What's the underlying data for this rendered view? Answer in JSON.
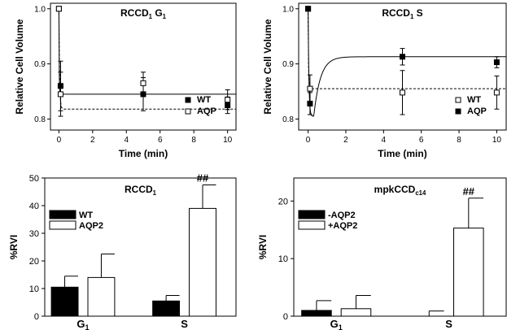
{
  "chart_data": [
    {
      "type": "scatter",
      "title": "RCCD",
      "title_sub": "1",
      "title_suffix": " G",
      "title_suffix_sub": "1",
      "xlabel": "Time (min)",
      "ylabel": "Relative Cell Volume",
      "xlim": [
        -0.5,
        10.5
      ],
      "ylim": [
        0.78,
        1.01
      ],
      "xticks": [
        "0",
        "2",
        "4",
        "6",
        "8",
        "10"
      ],
      "yticks": [
        "0.8",
        "0.9",
        "1.0"
      ],
      "legend_position": "bottom-right",
      "series": [
        {
          "name": "WT",
          "marker": "filled-square",
          "x": [
            0,
            0.1,
            5,
            10
          ],
          "y": [
            1.0,
            0.86,
            0.845,
            0.825
          ],
          "err": [
            0,
            0.045,
            0.03,
            0.015
          ],
          "fit": {
            "style": "solid",
            "plateau": 0.845,
            "tau": 0.015
          }
        },
        {
          "name": "AQP",
          "marker": "open-square",
          "x": [
            0,
            0.1,
            5,
            10
          ],
          "y": [
            1.0,
            0.845,
            0.865,
            0.835
          ],
          "err": [
            0,
            0.04,
            0.02,
            0.018
          ],
          "fit": {
            "style": "dashed",
            "plateau": 0.818,
            "tau": 0.04
          }
        }
      ]
    },
    {
      "type": "scatter",
      "title": "RCCD",
      "title_sub": "1",
      "title_suffix": " S",
      "title_suffix_sub": "",
      "xlabel": "Time (min)",
      "ylabel": "Relative Cell Volume",
      "xlim": [
        -0.5,
        10.5
      ],
      "ylim": [
        0.78,
        1.01
      ],
      "xticks": [
        "0",
        "2",
        "4",
        "6",
        "8",
        "10"
      ],
      "yticks": [
        "0.8",
        "0.9",
        "1.0"
      ],
      "legend_position": "bottom-right",
      "series": [
        {
          "name": "WT",
          "marker": "open-square",
          "x": [
            0,
            0.1,
            5,
            10
          ],
          "y": [
            1.0,
            0.855,
            0.848,
            0.848
          ],
          "err": [
            0,
            0.025,
            0.04,
            0.03
          ],
          "fit": {
            "style": "dashed",
            "plateau": 0.855,
            "tau": 0.02
          }
        },
        {
          "name": "AQP",
          "marker": "filled-square",
          "x": [
            0,
            0.1,
            5,
            10
          ],
          "y": [
            1.0,
            0.828,
            0.913,
            0.903
          ],
          "err": [
            0,
            0.02,
            0.015,
            0.01
          ],
          "fit": {
            "style": "solid",
            "plateau": 0.913,
            "dip_min": 0.805,
            "dip_t": 0.3,
            "tau": 0.35
          }
        }
      ]
    },
    {
      "type": "bar",
      "title": "RCCD",
      "title_sub": "1",
      "xlabel": "",
      "ylabel": "%RVI",
      "ylim": [
        0,
        50
      ],
      "yticks": [
        "0",
        "10",
        "20",
        "30",
        "40",
        "50"
      ],
      "categories": [
        {
          "label": "G",
          "sub": "1"
        },
        {
          "label": "S",
          "sub": ""
        }
      ],
      "legend_position": "top-left",
      "annotations": [
        {
          "text": "##",
          "category": 1,
          "series": 1
        }
      ],
      "series": [
        {
          "name": "WT",
          "fill": "#000000",
          "values": [
            10.5,
            5.5
          ],
          "err": [
            4.0,
            2.0
          ]
        },
        {
          "name": "AQP2",
          "fill": "#ffffff",
          "values": [
            14.0,
            39.0
          ],
          "err": [
            8.5,
            8.5
          ]
        }
      ]
    },
    {
      "type": "bar",
      "title": "mpkCCD",
      "title_sub": "c14",
      "xlabel": "",
      "ylabel": "%RVI",
      "ylim": [
        0,
        24
      ],
      "yticks": [
        "0",
        "10",
        "20"
      ],
      "categories": [
        {
          "label": "G",
          "sub": "1"
        },
        {
          "label": "S",
          "sub": ""
        }
      ],
      "legend_position": "top-left",
      "annotations": [
        {
          "text": "##",
          "category": 1,
          "series": 1
        }
      ],
      "series": [
        {
          "name": "-AQP2",
          "fill": "#000000",
          "values": [
            1.0,
            0.0
          ],
          "err": [
            1.7,
            0.9
          ]
        },
        {
          "name": "+AQP2",
          "fill": "#ffffff",
          "values": [
            1.3,
            15.3
          ],
          "err": [
            2.3,
            5.2
          ]
        }
      ]
    }
  ]
}
